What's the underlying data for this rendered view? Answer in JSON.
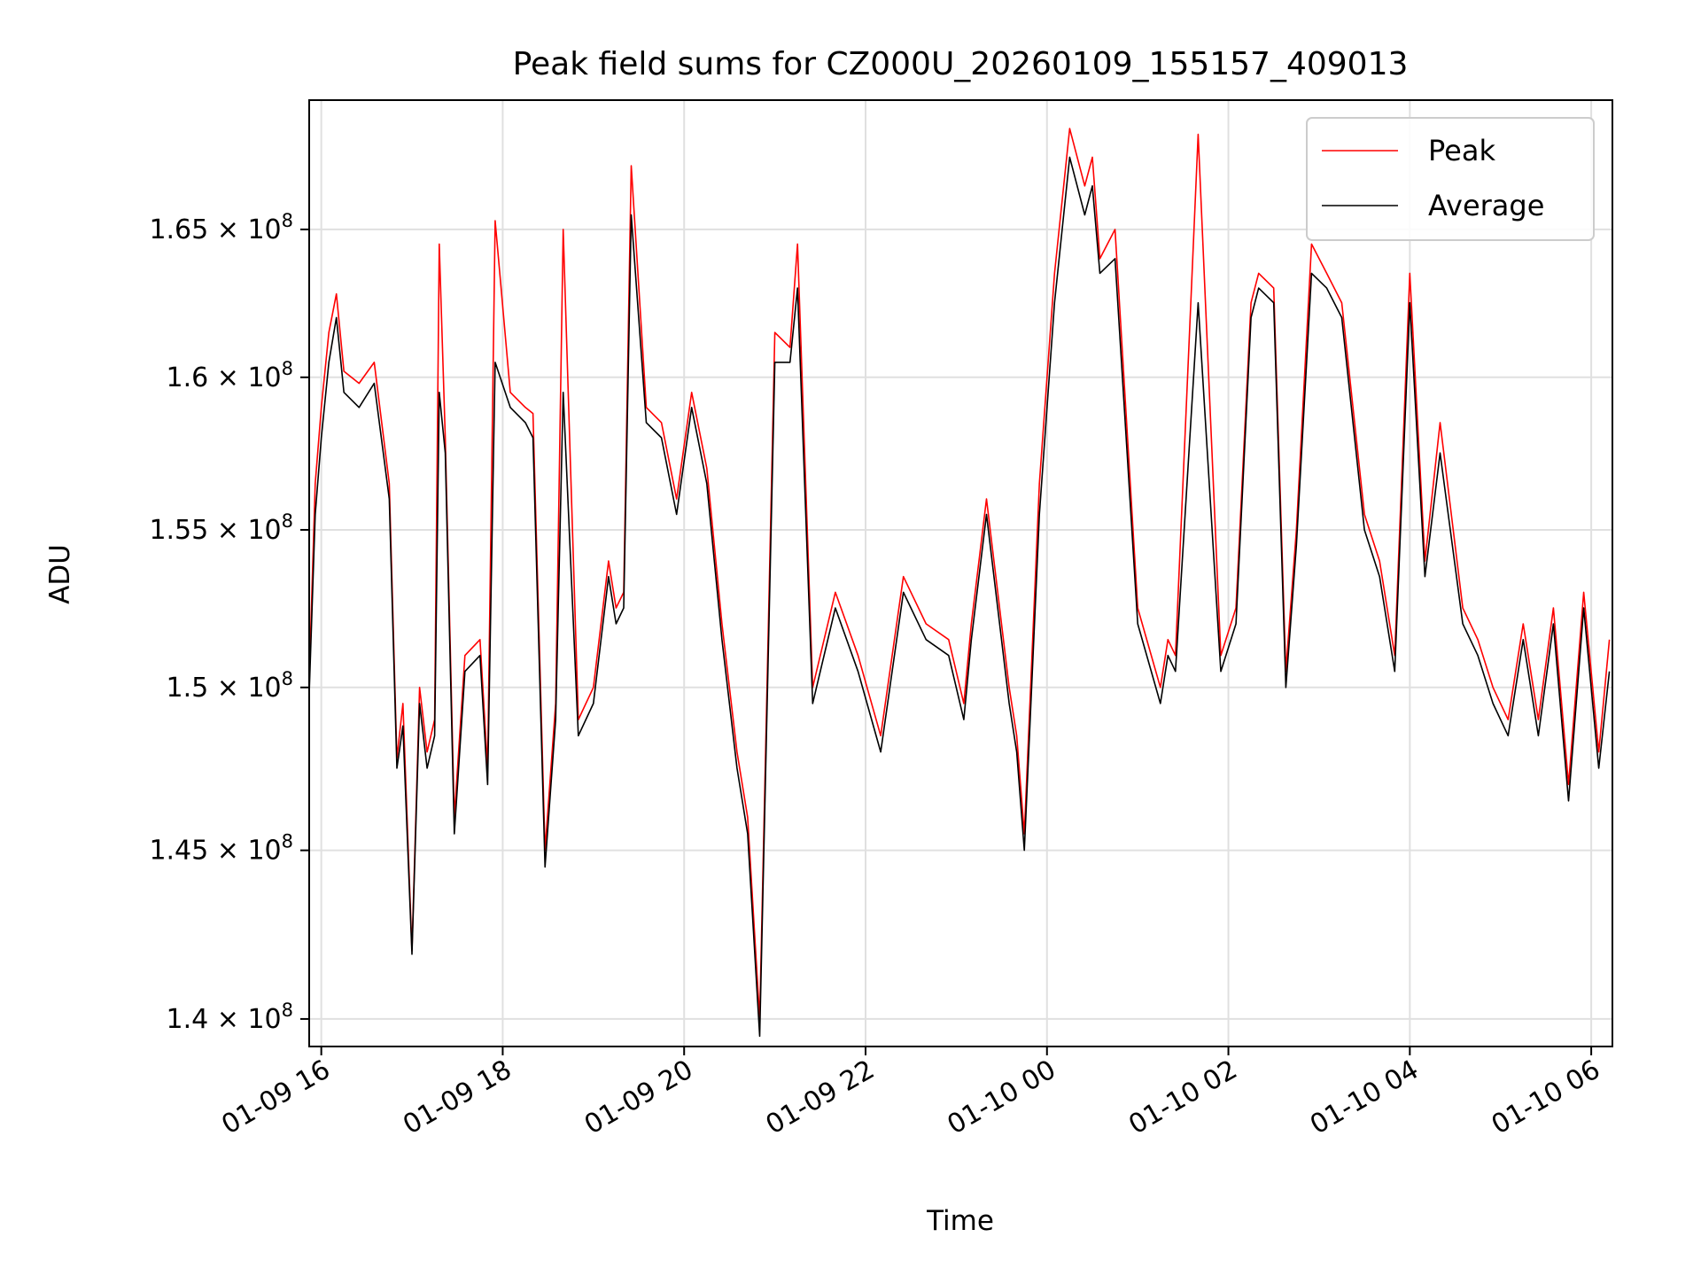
{
  "chart_data": {
    "type": "line",
    "title": "Peak field sums for CZ000U_20260109_155157_409013",
    "xlabel": "Time",
    "ylabel": "ADU",
    "scale_y": "log",
    "grid": true,
    "legend_position": "top-right",
    "xlim": [
      "2026-01-09 15:52",
      "2026-01-10 06:14"
    ],
    "ylim": [
      139200000,
      169500000
    ],
    "x_ticks": [
      {
        "t": "2026-01-09 16:00",
        "label": "01-09 16"
      },
      {
        "t": "2026-01-09 18:00",
        "label": "01-09 18"
      },
      {
        "t": "2026-01-09 20:00",
        "label": "01-09 20"
      },
      {
        "t": "2026-01-09 22:00",
        "label": "01-09 22"
      },
      {
        "t": "2026-01-10 00:00",
        "label": "01-10 00"
      },
      {
        "t": "2026-01-10 02:00",
        "label": "01-10 02"
      },
      {
        "t": "2026-01-10 04:00",
        "label": "01-10 04"
      },
      {
        "t": "2026-01-10 06:00",
        "label": "01-10 06"
      }
    ],
    "y_ticks": [
      {
        "v": 140000000,
        "mant": "1.4",
        "exp": "8"
      },
      {
        "v": 145000000,
        "mant": "1.45",
        "exp": "8"
      },
      {
        "v": 150000000,
        "mant": "1.5",
        "exp": "8"
      },
      {
        "v": 155000000,
        "mant": "1.55",
        "exp": "8"
      },
      {
        "v": 160000000,
        "mant": "1.6",
        "exp": "8"
      },
      {
        "v": 165000000,
        "mant": "1.65",
        "exp": "8"
      }
    ],
    "colors": {
      "peak": "#ff0000",
      "average": "#000000",
      "grid": "#e0e0e0"
    },
    "series": [
      {
        "name": "Peak",
        "color": "#ff0000",
        "x": [
          "2026-01-09 15:52",
          "2026-01-09 15:56",
          "2026-01-09 16:00",
          "2026-01-09 16:05",
          "2026-01-09 16:10",
          "2026-01-09 16:15",
          "2026-01-09 16:25",
          "2026-01-09 16:35",
          "2026-01-09 16:45",
          "2026-01-09 16:50",
          "2026-01-09 16:54",
          "2026-01-09 17:00",
          "2026-01-09 17:05",
          "2026-01-09 17:10",
          "2026-01-09 17:15",
          "2026-01-09 17:18",
          "2026-01-09 17:22",
          "2026-01-09 17:28",
          "2026-01-09 17:35",
          "2026-01-09 17:45",
          "2026-01-09 17:50",
          "2026-01-09 17:55",
          "2026-01-09 18:05",
          "2026-01-09 18:15",
          "2026-01-09 18:20",
          "2026-01-09 18:28",
          "2026-01-09 18:35",
          "2026-01-09 18:40",
          "2026-01-09 18:50",
          "2026-01-09 19:00",
          "2026-01-09 19:10",
          "2026-01-09 19:15",
          "2026-01-09 19:20",
          "2026-01-09 19:25",
          "2026-01-09 19:35",
          "2026-01-09 19:45",
          "2026-01-09 19:55",
          "2026-01-09 20:05",
          "2026-01-09 20:15",
          "2026-01-09 20:25",
          "2026-01-09 20:35",
          "2026-01-09 20:42",
          "2026-01-09 20:50",
          "2026-01-09 21:00",
          "2026-01-09 21:10",
          "2026-01-09 21:15",
          "2026-01-09 21:25",
          "2026-01-09 21:40",
          "2026-01-09 21:55",
          "2026-01-09 22:10",
          "2026-01-09 22:25",
          "2026-01-09 22:40",
          "2026-01-09 22:55",
          "2026-01-09 23:05",
          "2026-01-09 23:10",
          "2026-01-09 23:20",
          "2026-01-09 23:35",
          "2026-01-09 23:40",
          "2026-01-09 23:45",
          "2026-01-09 23:55",
          "2026-01-10 00:05",
          "2026-01-10 00:15",
          "2026-01-10 00:25",
          "2026-01-10 00:30",
          "2026-01-10 00:35",
          "2026-01-10 00:45",
          "2026-01-10 01:00",
          "2026-01-10 01:15",
          "2026-01-10 01:20",
          "2026-01-10 01:25",
          "2026-01-10 01:40",
          "2026-01-10 01:55",
          "2026-01-10 02:05",
          "2026-01-10 02:15",
          "2026-01-10 02:20",
          "2026-01-10 02:30",
          "2026-01-10 02:38",
          "2026-01-10 02:45",
          "2026-01-10 02:55",
          "2026-01-10 03:05",
          "2026-01-10 03:15",
          "2026-01-10 03:30",
          "2026-01-10 03:40",
          "2026-01-10 03:50",
          "2026-01-10 04:00",
          "2026-01-10 04:10",
          "2026-01-10 04:20",
          "2026-01-10 04:35",
          "2026-01-10 04:45",
          "2026-01-10 04:55",
          "2026-01-10 05:05",
          "2026-01-10 05:15",
          "2026-01-10 05:25",
          "2026-01-10 05:35",
          "2026-01-10 05:45",
          "2026-01-10 05:55",
          "2026-01-10 06:05",
          "2026-01-10 06:12"
        ],
        "y": [
          150200000,
          156500000,
          159000000,
          161500000,
          162800000,
          160200000,
          159800000,
          160500000,
          156500000,
          147800000,
          149500000,
          142000000,
          150000000,
          148000000,
          149000000,
          164500000,
          158000000,
          146000000,
          151000000,
          151500000,
          147500000,
          165300000,
          159500000,
          159000000,
          158800000,
          145000000,
          149500000,
          165000000,
          149000000,
          150000000,
          154000000,
          152500000,
          153000000,
          167200000,
          159000000,
          158500000,
          156000000,
          159500000,
          157000000,
          152000000,
          148000000,
          146000000,
          140000000,
          161500000,
          161000000,
          164500000,
          150000000,
          153000000,
          151000000,
          148500000,
          153500000,
          152000000,
          151500000,
          149500000,
          152000000,
          156000000,
          150000000,
          148500000,
          145500000,
          156500000,
          163500000,
          168500000,
          166500000,
          167500000,
          164000000,
          165000000,
          152500000,
          150000000,
          151500000,
          151000000,
          168300000,
          151000000,
          152500000,
          162500000,
          163500000,
          163000000,
          150500000,
          155000000,
          164500000,
          163500000,
          162500000,
          155500000,
          154000000,
          151000000,
          163500000,
          154000000,
          158500000,
          152500000,
          151500000,
          150000000,
          149000000,
          152000000,
          149000000,
          152500000,
          147000000,
          153000000,
          148000000,
          151500000
        ]
      },
      {
        "name": "Average",
        "color": "#000000",
        "x": [
          "2026-01-09 15:52",
          "2026-01-09 15:56",
          "2026-01-09 16:00",
          "2026-01-09 16:05",
          "2026-01-09 16:10",
          "2026-01-09 16:15",
          "2026-01-09 16:25",
          "2026-01-09 16:35",
          "2026-01-09 16:45",
          "2026-01-09 16:50",
          "2026-01-09 16:54",
          "2026-01-09 17:00",
          "2026-01-09 17:05",
          "2026-01-09 17:10",
          "2026-01-09 17:15",
          "2026-01-09 17:18",
          "2026-01-09 17:22",
          "2026-01-09 17:28",
          "2026-01-09 17:35",
          "2026-01-09 17:45",
          "2026-01-09 17:50",
          "2026-01-09 17:55",
          "2026-01-09 18:05",
          "2026-01-09 18:15",
          "2026-01-09 18:20",
          "2026-01-09 18:28",
          "2026-01-09 18:35",
          "2026-01-09 18:40",
          "2026-01-09 18:50",
          "2026-01-09 19:00",
          "2026-01-09 19:10",
          "2026-01-09 19:15",
          "2026-01-09 19:20",
          "2026-01-09 19:25",
          "2026-01-09 19:35",
          "2026-01-09 19:45",
          "2026-01-09 19:55",
          "2026-01-09 20:05",
          "2026-01-09 20:15",
          "2026-01-09 20:25",
          "2026-01-09 20:35",
          "2026-01-09 20:42",
          "2026-01-09 20:50",
          "2026-01-09 21:00",
          "2026-01-09 21:10",
          "2026-01-09 21:15",
          "2026-01-09 21:25",
          "2026-01-09 21:40",
          "2026-01-09 21:55",
          "2026-01-09 22:10",
          "2026-01-09 22:25",
          "2026-01-09 22:40",
          "2026-01-09 22:55",
          "2026-01-09 23:05",
          "2026-01-09 23:10",
          "2026-01-09 23:20",
          "2026-01-09 23:35",
          "2026-01-09 23:40",
          "2026-01-09 23:45",
          "2026-01-09 23:55",
          "2026-01-10 00:05",
          "2026-01-10 00:15",
          "2026-01-10 00:25",
          "2026-01-10 00:30",
          "2026-01-10 00:35",
          "2026-01-10 00:45",
          "2026-01-10 01:00",
          "2026-01-10 01:15",
          "2026-01-10 01:20",
          "2026-01-10 01:25",
          "2026-01-10 01:40",
          "2026-01-10 01:55",
          "2026-01-10 02:05",
          "2026-01-10 02:15",
          "2026-01-10 02:20",
          "2026-01-10 02:30",
          "2026-01-10 02:38",
          "2026-01-10 02:45",
          "2026-01-10 02:55",
          "2026-01-10 03:05",
          "2026-01-10 03:15",
          "2026-01-10 03:30",
          "2026-01-10 03:40",
          "2026-01-10 03:50",
          "2026-01-10 04:00",
          "2026-01-10 04:10",
          "2026-01-10 04:20",
          "2026-01-10 04:35",
          "2026-01-10 04:45",
          "2026-01-10 04:55",
          "2026-01-10 05:05",
          "2026-01-10 05:15",
          "2026-01-10 05:25",
          "2026-01-10 05:35",
          "2026-01-10 05:45",
          "2026-01-10 05:55",
          "2026-01-10 06:05",
          "2026-01-10 06:12"
        ],
        "y": [
          149800000,
          155500000,
          158000000,
          160500000,
          162000000,
          159500000,
          159000000,
          159800000,
          156000000,
          147500000,
          148800000,
          141900000,
          149500000,
          147500000,
          148500000,
          159500000,
          157500000,
          145500000,
          150500000,
          151000000,
          147000000,
          160500000,
          159000000,
          158500000,
          158000000,
          144500000,
          149000000,
          159500000,
          148500000,
          149500000,
          153500000,
          152000000,
          152500000,
          165500000,
          158500000,
          158000000,
          155500000,
          159000000,
          156500000,
          151500000,
          147500000,
          145500000,
          139500000,
          160500000,
          160500000,
          163000000,
          149500000,
          152500000,
          150500000,
          148000000,
          153000000,
          151500000,
          151000000,
          149000000,
          151500000,
          155500000,
          149500000,
          148000000,
          145000000,
          155500000,
          162500000,
          167500000,
          165500000,
          166500000,
          163500000,
          164000000,
          152000000,
          149500000,
          151000000,
          150500000,
          162500000,
          150500000,
          152000000,
          162000000,
          163000000,
          162500000,
          150000000,
          154500000,
          163500000,
          163000000,
          162000000,
          155000000,
          153500000,
          150500000,
          162500000,
          153500000,
          157500000,
          152000000,
          151000000,
          149500000,
          148500000,
          151500000,
          148500000,
          152000000,
          146500000,
          152500000,
          147500000,
          150500000
        ]
      }
    ]
  }
}
